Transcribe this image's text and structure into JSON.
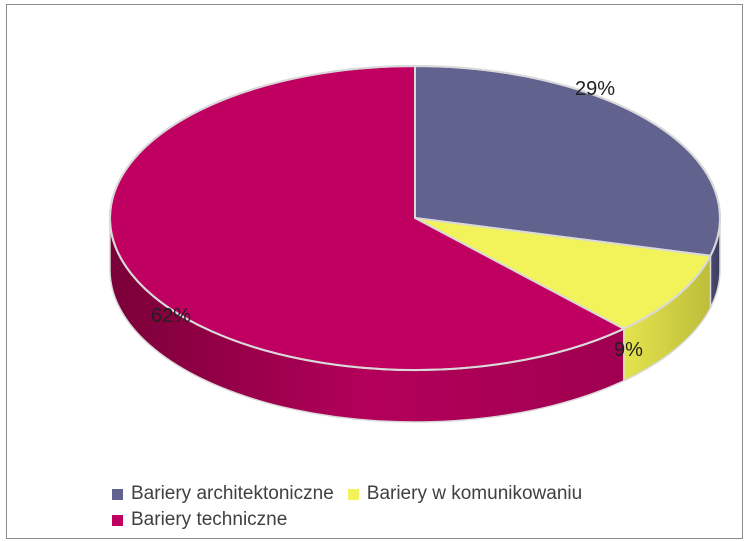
{
  "chart_data": {
    "type": "pie",
    "style": "3d",
    "title": "",
    "categories": [
      "Bariery architektoniczne",
      "Bariery w komunikowaniu",
      "Bariery techniczne"
    ],
    "values": [
      29,
      9,
      62
    ],
    "labels": [
      "29%",
      "9%",
      "62%"
    ],
    "colors": [
      "#62628f",
      "#f2f25a",
      "#c00060"
    ],
    "legend_position": "bottom"
  },
  "legend": {
    "items": [
      {
        "label": "Bariery architektoniczne",
        "color": "#62628f"
      },
      {
        "label": "Bariery w komunikowaniu",
        "color": "#f2f25a"
      },
      {
        "label": "Bariery techniczne",
        "color": "#c00060"
      }
    ]
  }
}
